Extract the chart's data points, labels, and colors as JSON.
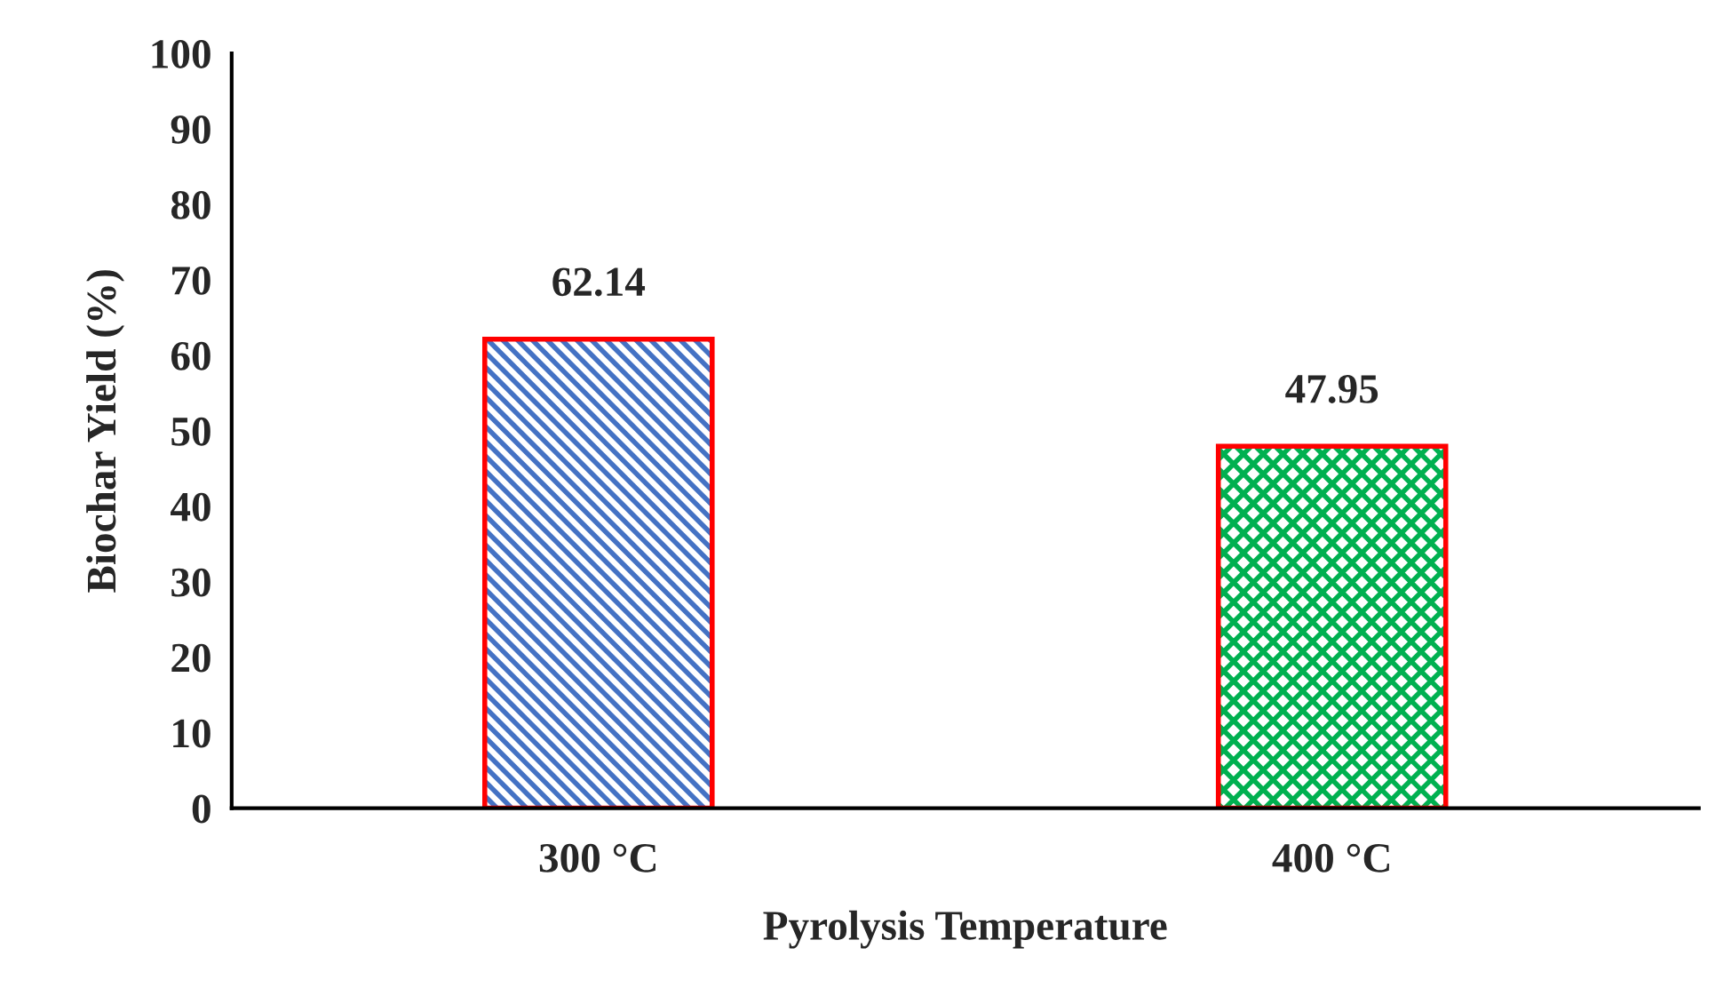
{
  "chart_data": {
    "type": "bar",
    "xlabel": "Pyrolysis Temperature",
    "ylabel": "Biochar Yield (%)",
    "categories": [
      "300 °C",
      "400 °C"
    ],
    "values": [
      62.14,
      47.95
    ],
    "colors": [
      "#4472c4",
      "#00b050"
    ],
    "ylim": [
      0,
      100
    ],
    "yticks": [
      0,
      10,
      20,
      30,
      40,
      50,
      60,
      70,
      80,
      90,
      100
    ],
    "grid": false,
    "data_labels": true
  }
}
